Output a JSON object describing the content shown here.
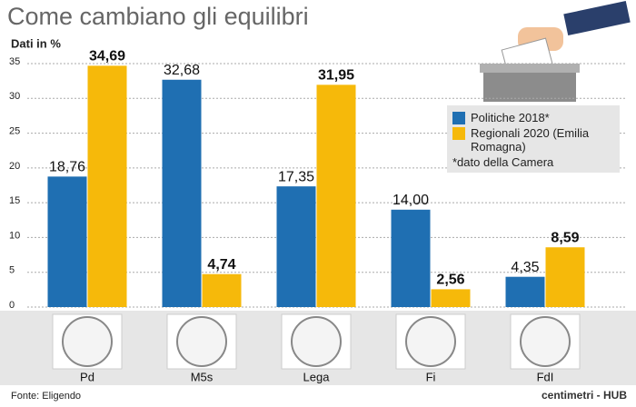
{
  "chart_data": {
    "type": "bar",
    "title": "Come cambiano gli equilibri",
    "y_label": "Dati in %",
    "categories": [
      "Pd",
      "M5s",
      "Lega",
      "Fi",
      "FdI"
    ],
    "series": [
      {
        "name": "Politiche 2018*",
        "color": "#1f6fb2",
        "values": [
          18.76,
          32.68,
          17.35,
          14.0,
          4.35
        ],
        "value_labels": [
          "18,76",
          "32,68",
          "17,35",
          "14,00",
          "4,35"
        ]
      },
      {
        "name": "Regionali 2020 (Emilia Romagna)",
        "color": "#f6b90a",
        "values": [
          34.69,
          4.74,
          31.95,
          2.56,
          8.59
        ],
        "value_labels": [
          "34,69",
          "4,74",
          "31,95",
          "2,56",
          "8,59"
        ]
      }
    ],
    "note": "*dato della Camera",
    "source": "Fonte: Eligendo",
    "credit": "centimetri - HUB",
    "ylim": [
      0,
      35
    ],
    "yticks": [
      0,
      5,
      10,
      15,
      20,
      25,
      30,
      35
    ],
    "grid": true
  }
}
